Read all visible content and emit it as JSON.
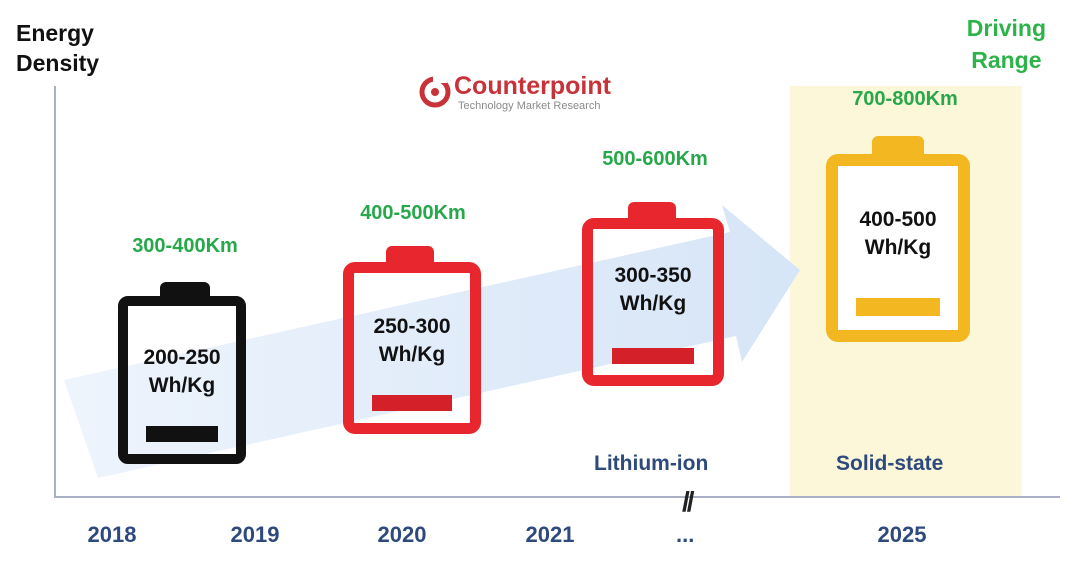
{
  "titles": {
    "left_line1": "Energy",
    "left_line2": "Density",
    "right_line1": "Driving",
    "right_line2": "Range"
  },
  "logo": {
    "name": "Counterpoint",
    "tagline": "Technology Market Research"
  },
  "years": [
    "2018",
    "2019",
    "2020",
    "2021",
    "...",
    "2025"
  ],
  "axis_break": "//",
  "batteries": [
    {
      "range": "300-400Km",
      "density_line1": "200-250",
      "density_line2": "Wh/Kg",
      "color": "#111111",
      "level_color": "#111111"
    },
    {
      "range": "400-500Km",
      "density_line1": "250-300",
      "density_line2": "Wh/Kg",
      "color": "#e8262d",
      "level_color": "#d42028"
    },
    {
      "range": "500-600Km",
      "density_line1": "300-350",
      "density_line2": "Wh/Kg",
      "color": "#e8262d",
      "level_color": "#d42028"
    },
    {
      "range": "700-800Km",
      "density_line1": "400-500",
      "density_line2": "Wh/Kg",
      "color": "#f3b722",
      "level_color": "#f3b722"
    }
  ],
  "technologies": {
    "lithium_ion": "Lithium-ion",
    "solid_state": "Solid-state"
  },
  "colors": {
    "range_text": "#27a84a",
    "year_text": "#2e4a7c",
    "arrow": "#dbe8f8",
    "solid_state_bg": "#fbf7d8"
  }
}
